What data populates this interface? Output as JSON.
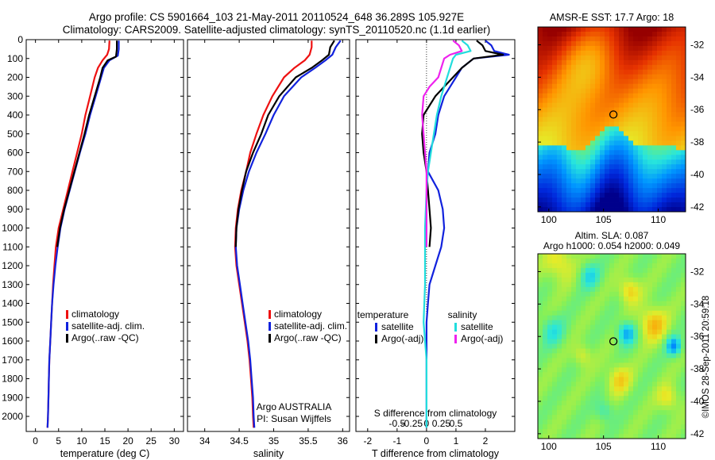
{
  "header": {
    "line1": "Argo profile: CS 5901664_103 21-May-2011 20110524_648 36.289S 105.927E",
    "line2": "Climatology: CARS2009. Satellite-adjusted climatology: synTS_20110520.nc (1.1d earlier)"
  },
  "colors": {
    "red": "#ee1111",
    "blue": "#1122dd",
    "black": "#000000",
    "cyan": "#22dddd",
    "magenta": "#ee22ee"
  },
  "chart_data": [
    {
      "type": "line",
      "id": "temperature",
      "xlabel": "temperature (deg C)",
      "xlim": [
        -2,
        32
      ],
      "ylim": [
        0,
        2080
      ],
      "yreverse": true,
      "xticks": [
        0,
        5,
        10,
        15,
        20,
        25,
        30
      ],
      "yticks": [
        0,
        100,
        200,
        300,
        400,
        500,
        600,
        700,
        800,
        900,
        1000,
        1100,
        1200,
        1300,
        1400,
        1500,
        1600,
        1700,
        1800,
        1900,
        2000
      ],
      "legend": [
        "climatology",
        "satellite-adj. clim.",
        "Argo(..raw -QC)"
      ],
      "series": [
        {
          "name": "climatology",
          "color": "#ee1111",
          "points": [
            [
              16.0,
              5
            ],
            [
              15.9,
              50
            ],
            [
              15.5,
              80
            ],
            [
              14.5,
              110
            ],
            [
              13.5,
              150
            ],
            [
              12.8,
              200
            ],
            [
              11.8,
              300
            ],
            [
              10.8,
              400
            ],
            [
              10.0,
              500
            ],
            [
              9.0,
              600
            ],
            [
              8.0,
              700
            ],
            [
              7.0,
              800
            ],
            [
              6.0,
              900
            ],
            [
              5.0,
              1000
            ],
            [
              4.4,
              1100
            ],
            [
              4.1,
              1200
            ],
            [
              3.8,
              1300
            ],
            [
              3.6,
              1400
            ],
            [
              3.4,
              1500
            ],
            [
              3.2,
              1600
            ],
            [
              3.0,
              1700
            ],
            [
              2.9,
              1800
            ],
            [
              2.8,
              1900
            ],
            [
              2.7,
              2000
            ],
            [
              2.6,
              2060
            ]
          ]
        },
        {
          "name": "satellite-adj. clim.",
          "color": "#1122dd",
          "points": [
            [
              18.0,
              5
            ],
            [
              18.0,
              50
            ],
            [
              17.8,
              85
            ],
            [
              16.0,
              110
            ],
            [
              14.8,
              150
            ],
            [
              14.2,
              200
            ],
            [
              13.0,
              300
            ],
            [
              11.8,
              400
            ],
            [
              10.8,
              500
            ],
            [
              9.6,
              600
            ],
            [
              8.5,
              700
            ],
            [
              7.4,
              800
            ],
            [
              6.3,
              900
            ],
            [
              5.4,
              1000
            ],
            [
              4.8,
              1100
            ],
            [
              4.3,
              1200
            ],
            [
              3.9,
              1300
            ],
            [
              3.6,
              1400
            ],
            [
              3.4,
              1500
            ],
            [
              3.2,
              1600
            ],
            [
              3.0,
              1700
            ],
            [
              2.9,
              1800
            ],
            [
              2.8,
              1900
            ],
            [
              2.7,
              2000
            ],
            [
              2.6,
              2060
            ]
          ]
        },
        {
          "name": "Argo(..raw -QC)",
          "color": "#000000",
          "points": [
            [
              17.6,
              5
            ],
            [
              17.6,
              50
            ],
            [
              17.4,
              90
            ],
            [
              15.6,
              110
            ],
            [
              14.5,
              150
            ],
            [
              14.0,
              200
            ],
            [
              12.8,
              300
            ],
            [
              11.6,
              400
            ],
            [
              10.6,
              500
            ],
            [
              9.5,
              600
            ],
            [
              8.4,
              700
            ],
            [
              7.3,
              800
            ],
            [
              6.2,
              900
            ],
            [
              5.3,
              1000
            ],
            [
              4.7,
              1100
            ]
          ]
        }
      ]
    },
    {
      "type": "line",
      "id": "salinity",
      "xlabel": "salinity",
      "xlim": [
        33.75,
        36.1
      ],
      "ylim": [
        0,
        2080
      ],
      "yreverse": true,
      "xticks": [
        34,
        34.5,
        35,
        35.5,
        36
      ],
      "legend": [
        "climatology",
        "satellite-adj. clim.",
        "Argo(..raw -QC)"
      ],
      "annotation": [
        "Argo AUSTRALIA",
        "PI: Susan Wijffels"
      ],
      "series": [
        {
          "name": "climatology",
          "color": "#ee1111",
          "points": [
            [
              35.55,
              5
            ],
            [
              35.55,
              40
            ],
            [
              35.52,
              80
            ],
            [
              35.45,
              110
            ],
            [
              35.3,
              150
            ],
            [
              35.15,
              200
            ],
            [
              34.98,
              300
            ],
            [
              34.85,
              400
            ],
            [
              34.75,
              500
            ],
            [
              34.66,
              600
            ],
            [
              34.6,
              700
            ],
            [
              34.53,
              800
            ],
            [
              34.48,
              900
            ],
            [
              34.45,
              1000
            ],
            [
              34.44,
              1100
            ],
            [
              34.46,
              1200
            ],
            [
              34.5,
              1300
            ],
            [
              34.54,
              1400
            ],
            [
              34.58,
              1500
            ],
            [
              34.62,
              1600
            ],
            [
              34.65,
              1700
            ],
            [
              34.67,
              1800
            ],
            [
              34.69,
              1900
            ],
            [
              34.7,
              2000
            ],
            [
              34.71,
              2060
            ]
          ]
        },
        {
          "name": "satellite-adj. clim.",
          "color": "#1122dd",
          "points": [
            [
              35.97,
              5
            ],
            [
              35.9,
              40
            ],
            [
              35.85,
              80
            ],
            [
              35.75,
              110
            ],
            [
              35.6,
              150
            ],
            [
              35.4,
              200
            ],
            [
              35.15,
              300
            ],
            [
              35.0,
              400
            ],
            [
              34.88,
              500
            ],
            [
              34.75,
              600
            ],
            [
              34.64,
              700
            ],
            [
              34.56,
              800
            ],
            [
              34.5,
              900
            ],
            [
              34.46,
              1000
            ],
            [
              34.45,
              1100
            ],
            [
              34.47,
              1200
            ],
            [
              34.51,
              1300
            ],
            [
              34.55,
              1400
            ],
            [
              34.59,
              1500
            ],
            [
              34.63,
              1600
            ],
            [
              34.66,
              1700
            ],
            [
              34.68,
              1800
            ],
            [
              34.7,
              1900
            ],
            [
              34.71,
              2000
            ],
            [
              34.72,
              2060
            ]
          ]
        },
        {
          "name": "Argo(..raw -QC)",
          "color": "#000000",
          "points": [
            [
              35.88,
              5
            ],
            [
              35.82,
              40
            ],
            [
              35.8,
              80
            ],
            [
              35.7,
              110
            ],
            [
              35.55,
              150
            ],
            [
              35.32,
              200
            ],
            [
              35.08,
              300
            ],
            [
              34.92,
              400
            ],
            [
              34.82,
              500
            ],
            [
              34.7,
              600
            ],
            [
              34.6,
              700
            ],
            [
              34.54,
              800
            ],
            [
              34.49,
              900
            ],
            [
              34.46,
              1000
            ],
            [
              34.45,
              1100
            ]
          ]
        }
      ]
    },
    {
      "type": "line",
      "id": "differences",
      "xlabel": "T difference from climatology",
      "xlabel2": "S difference from climatology",
      "xlim": [
        -2.4,
        3.0
      ],
      "ylim": [
        0,
        2080
      ],
      "yreverse": true,
      "xticks": [
        -2,
        -1,
        0,
        1,
        2
      ],
      "xticks2": [
        "-0.5",
        "-0.25",
        "0",
        "0.25",
        "0.5"
      ],
      "legend_groups": [
        {
          "title": "temperature",
          "entries": [
            "satellite",
            "Argo(-adj)"
          ]
        },
        {
          "title": "salinity",
          "entries": [
            "satellite",
            "Argo(-adj)"
          ]
        }
      ],
      "series": [
        {
          "name": "temperature satellite",
          "color": "#1122dd",
          "points": [
            [
              2.0,
              5
            ],
            [
              2.2,
              30
            ],
            [
              2.3,
              60
            ],
            [
              2.8,
              80
            ],
            [
              1.6,
              100
            ],
            [
              1.2,
              150
            ],
            [
              1.0,
              200
            ],
            [
              0.8,
              250
            ],
            [
              0.6,
              300
            ],
            [
              0.4,
              400
            ],
            [
              0.3,
              500
            ],
            [
              0.1,
              600
            ],
            [
              0.05,
              700
            ],
            [
              0.4,
              800
            ],
            [
              0.55,
              900
            ],
            [
              0.6,
              1000
            ],
            [
              0.5,
              1100
            ],
            [
              0.3,
              1200
            ],
            [
              0.1,
              1300
            ],
            [
              0.05,
              1400
            ],
            [
              0.0,
              1500
            ],
            [
              0.0,
              1700
            ],
            [
              0.0,
              2060
            ]
          ]
        },
        {
          "name": "temperature Argo(-adj)",
          "color": "#000000",
          "points": [
            [
              1.7,
              5
            ],
            [
              1.9,
              30
            ],
            [
              2.0,
              60
            ],
            [
              2.6,
              80
            ],
            [
              1.6,
              100
            ],
            [
              1.2,
              150
            ],
            [
              0.9,
              200
            ],
            [
              0.6,
              250
            ],
            [
              0.3,
              300
            ],
            [
              -0.1,
              400
            ],
            [
              -0.15,
              500
            ],
            [
              -0.1,
              600
            ],
            [
              0.0,
              700
            ],
            [
              0.05,
              800
            ],
            [
              0.1,
              900
            ],
            [
              0.15,
              1000
            ],
            [
              0.1,
              1100
            ]
          ]
        },
        {
          "name": "salinity satellite",
          "color": "#22dddd",
          "points": [
            [
              1.2,
              5
            ],
            [
              1.4,
              30
            ],
            [
              1.5,
              60
            ],
            [
              1.0,
              80
            ],
            [
              0.9,
              100
            ],
            [
              0.7,
              200
            ],
            [
              0.6,
              250
            ],
            [
              0.5,
              300
            ],
            [
              0.35,
              400
            ],
            [
              0.25,
              500
            ],
            [
              0.15,
              600
            ],
            [
              0.05,
              700
            ],
            [
              0.0,
              800
            ],
            [
              -0.05,
              1000
            ],
            [
              -0.05,
              1300
            ],
            [
              -0.1,
              1500
            ],
            [
              0.0,
              1700
            ],
            [
              0.0,
              2060
            ]
          ]
        },
        {
          "name": "salinity Argo(-adj)",
          "color": "#ee22ee",
          "points": [
            [
              0.9,
              5
            ],
            [
              1.1,
              30
            ],
            [
              1.2,
              60
            ],
            [
              0.8,
              80
            ],
            [
              0.6,
              100
            ],
            [
              0.4,
              200
            ],
            [
              0.1,
              250
            ],
            [
              -0.1,
              300
            ],
            [
              -0.15,
              400
            ],
            [
              -0.1,
              500
            ],
            [
              -0.05,
              600
            ],
            [
              0.0,
              700
            ],
            [
              0.0,
              800
            ],
            [
              0.0,
              1000
            ],
            [
              0.0,
              1100
            ]
          ]
        }
      ]
    },
    {
      "type": "heatmap",
      "id": "sst-map",
      "title": "AMSR-E SST: 17.7 Argo: 18",
      "xlim": [
        99,
        112.5
      ],
      "ylim": [
        -42.3,
        -30.9
      ],
      "xticks": [
        100,
        105,
        110
      ],
      "yticks": [
        -32,
        -34,
        -36,
        -38,
        -40,
        -42
      ],
      "marker": [
        105.9,
        -36.3
      ]
    },
    {
      "type": "heatmap",
      "id": "sla-map",
      "title": "Altim. SLA: 0.087",
      "title2": "Argo h1000: 0.054 h2000: 0.049",
      "xlim": [
        99,
        112.5
      ],
      "ylim": [
        -42.3,
        -30.9
      ],
      "xticks": [
        100,
        105,
        110
      ],
      "yticks": [
        -32,
        -34,
        -36,
        -38,
        -40,
        -42
      ],
      "marker": [
        105.9,
        -36.3
      ]
    }
  ],
  "footer": {
    "credit": "©IMOS 28-Sep-2011 20:59:18"
  }
}
